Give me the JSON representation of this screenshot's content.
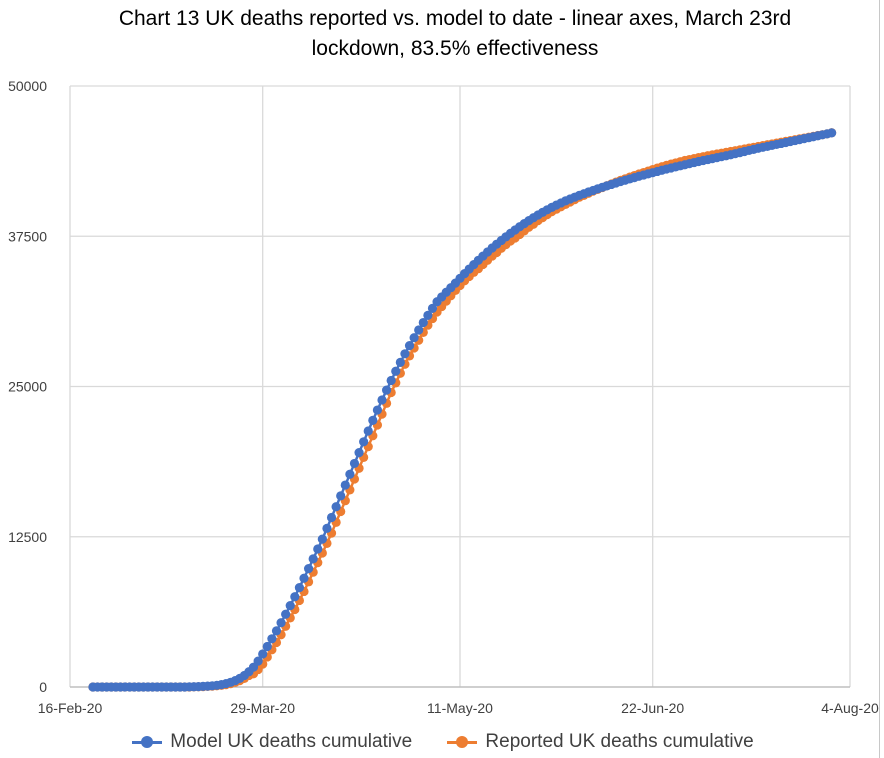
{
  "chart_data": {
    "type": "line",
    "title": "Chart 13 UK deaths reported vs. model to date -  linear axes, March 23rd lockdown, 83.5% effectiveness",
    "title_lines": [
      "Chart 13 UK deaths reported vs. model to date -  linear axes, March 23rd",
      "lockdown, 83.5% effectiveness"
    ],
    "xlabel": "",
    "ylabel": "",
    "xlim": [
      "16-Feb-20",
      "4-Aug-20"
    ],
    "ylim": [
      0,
      50000
    ],
    "x_ticks": [
      "16-Feb-20",
      "29-Mar-20",
      "11-May-20",
      "22-Jun-20",
      "4-Aug-20"
    ],
    "y_ticks": [
      "0",
      "12500",
      "25000",
      "37500",
      "50000"
    ],
    "grid": true,
    "legend_position": "bottom",
    "markers": "circle",
    "x": [
      "21-Feb-20",
      "22-Feb-20",
      "23-Feb-20",
      "24-Feb-20",
      "25-Feb-20",
      "26-Feb-20",
      "27-Feb-20",
      "28-Feb-20",
      "29-Feb-20",
      "1-Mar-20",
      "2-Mar-20",
      "3-Mar-20",
      "4-Mar-20",
      "5-Mar-20",
      "6-Mar-20",
      "7-Mar-20",
      "8-Mar-20",
      "9-Mar-20",
      "10-Mar-20",
      "11-Mar-20",
      "12-Mar-20",
      "13-Mar-20",
      "14-Mar-20",
      "15-Mar-20",
      "16-Mar-20",
      "17-Mar-20",
      "18-Mar-20",
      "19-Mar-20",
      "20-Mar-20",
      "21-Mar-20",
      "22-Mar-20",
      "23-Mar-20",
      "24-Mar-20",
      "25-Mar-20",
      "26-Mar-20",
      "27-Mar-20",
      "28-Mar-20",
      "29-Mar-20",
      "30-Mar-20",
      "31-Mar-20",
      "1-Apr-20",
      "2-Apr-20",
      "3-Apr-20",
      "4-Apr-20",
      "5-Apr-20",
      "6-Apr-20",
      "7-Apr-20",
      "8-Apr-20",
      "9-Apr-20",
      "10-Apr-20",
      "11-Apr-20",
      "12-Apr-20",
      "13-Apr-20",
      "14-Apr-20",
      "15-Apr-20",
      "16-Apr-20",
      "17-Apr-20",
      "18-Apr-20",
      "19-Apr-20",
      "20-Apr-20",
      "21-Apr-20",
      "22-Apr-20",
      "23-Apr-20",
      "24-Apr-20",
      "25-Apr-20",
      "26-Apr-20",
      "27-Apr-20",
      "28-Apr-20",
      "29-Apr-20",
      "30-Apr-20",
      "1-May-20",
      "2-May-20",
      "3-May-20",
      "4-May-20",
      "5-May-20",
      "6-May-20",
      "7-May-20",
      "8-May-20",
      "9-May-20",
      "10-May-20",
      "11-May-20",
      "12-May-20",
      "13-May-20",
      "14-May-20",
      "15-May-20",
      "16-May-20",
      "17-May-20",
      "18-May-20",
      "19-May-20",
      "20-May-20",
      "21-May-20",
      "22-May-20",
      "23-May-20",
      "24-May-20",
      "25-May-20",
      "26-May-20",
      "27-May-20",
      "28-May-20",
      "29-May-20",
      "30-May-20",
      "31-May-20",
      "1-Jun-20",
      "2-Jun-20",
      "3-Jun-20",
      "4-Jun-20",
      "5-Jun-20",
      "6-Jun-20",
      "7-Jun-20",
      "8-Jun-20",
      "9-Jun-20",
      "10-Jun-20",
      "11-Jun-20",
      "12-Jun-20",
      "13-Jun-20",
      "14-Jun-20",
      "15-Jun-20",
      "16-Jun-20",
      "17-Jun-20",
      "18-Jun-20",
      "19-Jun-20",
      "20-Jun-20",
      "21-Jun-20",
      "22-Jun-20",
      "23-Jun-20",
      "24-Jun-20",
      "25-Jun-20",
      "26-Jun-20",
      "27-Jun-20",
      "28-Jun-20",
      "29-Jun-20",
      "30-Jun-20",
      "1-Jul-20",
      "2-Jul-20",
      "3-Jul-20",
      "4-Jul-20",
      "5-Jul-20",
      "6-Jul-20",
      "7-Jul-20",
      "8-Jul-20",
      "9-Jul-20",
      "10-Jul-20",
      "11-Jul-20",
      "12-Jul-20",
      "13-Jul-20",
      "14-Jul-20",
      "15-Jul-20",
      "16-Jul-20",
      "17-Jul-20",
      "18-Jul-20",
      "19-Jul-20",
      "20-Jul-20",
      "21-Jul-20",
      "22-Jul-20",
      "23-Jul-20",
      "24-Jul-20",
      "25-Jul-20",
      "26-Jul-20",
      "27-Jul-20",
      "28-Jul-20",
      "29-Jul-20",
      "30-Jul-20",
      "31-Jul-20"
    ],
    "series": [
      {
        "name": "Reported UK deaths cumulative",
        "color": "#ED7D31",
        "values": [
          0,
          0,
          0,
          0,
          0,
          0,
          0,
          0,
          0,
          0,
          0,
          0,
          0,
          0,
          0,
          0,
          0,
          0,
          0,
          0,
          0,
          0,
          10,
          20,
          30,
          50,
          70,
          100,
          140,
          200,
          280,
          390,
          530,
          720,
          960,
          1100,
          1450,
          1900,
          2500,
          3100,
          3700,
          4350,
          5050,
          5750,
          6450,
          7200,
          7950,
          8750,
          9550,
          10350,
          11150,
          11950,
          12800,
          13700,
          14600,
          15500,
          16400,
          17300,
          18200,
          19100,
          20000,
          20900,
          21800,
          22700,
          23600,
          24500,
          25300,
          26100,
          26850,
          27550,
          28200,
          28850,
          29500,
          30100,
          30650,
          31200,
          31650,
          32100,
          32550,
          33000,
          33400,
          33800,
          34150,
          34500,
          34800,
          35150,
          35500,
          35850,
          36150,
          36500,
          36800,
          37100,
          37350,
          37650,
          37950,
          38250,
          38500,
          38800,
          39050,
          39300,
          39550,
          39750,
          39950,
          40150,
          40350,
          40550,
          40750,
          40900,
          41080,
          41250,
          41400,
          41550,
          41700,
          41850,
          42000,
          42150,
          42280,
          42420,
          42550,
          42680,
          42800,
          42920,
          43050,
          43170,
          43280,
          43400,
          43500,
          43600,
          43700,
          43800,
          43880,
          43960,
          44040,
          44120,
          44200,
          44270,
          44340,
          44410,
          44480,
          44550,
          44620,
          44690,
          44760,
          44830,
          44900,
          44970,
          45040,
          45110,
          45180,
          45250,
          45320,
          45390,
          45460,
          45530,
          45600,
          45670,
          45740,
          45810,
          45880,
          45950,
          46020,
          46110
        ]
      },
      {
        "name": "Model UK deaths cumulative",
        "color": "#4472C4",
        "values": [
          0,
          0,
          0,
          0,
          0,
          0,
          0,
          0,
          0,
          0,
          0,
          0,
          0,
          0,
          0,
          0,
          0,
          0,
          0,
          0,
          0,
          10,
          20,
          30,
          50,
          70,
          100,
          140,
          200,
          280,
          390,
          530,
          720,
          960,
          1270,
          1650,
          2150,
          2750,
          3370,
          4010,
          4670,
          5350,
          6050,
          6770,
          7510,
          8270,
          9050,
          9850,
          10660,
          11480,
          12300,
          13200,
          14100,
          15000,
          15900,
          16800,
          17700,
          18600,
          19500,
          20400,
          21300,
          22180,
          23040,
          23880,
          24700,
          25500,
          26270,
          27010,
          27720,
          28400,
          29060,
          29700,
          30320,
          30920,
          31500,
          32050,
          32450,
          32840,
          33220,
          33600,
          34000,
          34390,
          34770,
          35140,
          35500,
          35850,
          36190,
          36520,
          36840,
          37150,
          37450,
          37740,
          38020,
          38290,
          38550,
          38800,
          39040,
          39270,
          39490,
          39700,
          39900,
          40090,
          40270,
          40440,
          40600,
          40750,
          40900,
          41040,
          41180,
          41310,
          41440,
          41570,
          41690,
          41810,
          41930,
          42050,
          42160,
          42270,
          42380,
          42490,
          42590,
          42690,
          42790,
          42890,
          42990,
          43090,
          43180,
          43270,
          43360,
          43450,
          43540,
          43630,
          43720,
          43800,
          43880,
          43960,
          44040,
          44120,
          44200,
          44280,
          44370,
          44460,
          44550,
          44640,
          44730,
          44820,
          44900,
          44980,
          45060,
          45140,
          45220,
          45300,
          45380,
          45460,
          45540,
          45620,
          45700,
          45780,
          45860,
          45940,
          46020,
          46100
        ]
      }
    ]
  },
  "legend": {
    "items": [
      {
        "label": "Model UK deaths cumulative",
        "color": "#4472C4"
      },
      {
        "label": "Reported UK deaths cumulative",
        "color": "#ED7D31"
      }
    ]
  }
}
